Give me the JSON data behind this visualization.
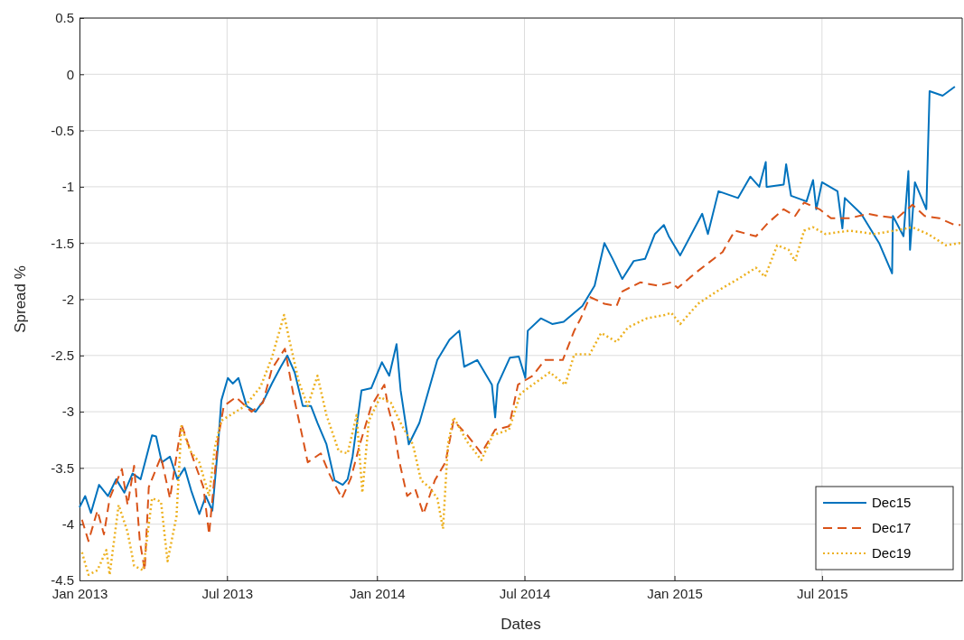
{
  "chart_data": {
    "type": "line",
    "xlabel": "Dates",
    "ylabel": "Spread %",
    "xlim": [
      "2013-01-01",
      "2015-12-20"
    ],
    "ylim": [
      -4.5,
      0.5
    ],
    "xticks": [
      {
        "value": "2013-01-01",
        "label": "Jan 2013"
      },
      {
        "value": "2013-07-01",
        "label": "Jul 2013"
      },
      {
        "value": "2014-01-01",
        "label": "Jan 2014"
      },
      {
        "value": "2014-07-01",
        "label": "Jul 2014"
      },
      {
        "value": "2015-01-01",
        "label": "Jan 2015"
      },
      {
        "value": "2015-07-01",
        "label": "Jul 2015"
      }
    ],
    "yticks": [
      -4.5,
      -4,
      -3.5,
      -3,
      -2.5,
      -2,
      -1.5,
      -1,
      -0.5,
      0,
      0.5
    ],
    "grid": true,
    "legend": "bottom right",
    "series": [
      {
        "name": "Dec15",
        "color": "#0072bd",
        "line_style": "solid",
        "x": [
          "2013-01-01",
          "2013-01-08",
          "2013-01-15",
          "2013-01-25",
          "2013-02-05",
          "2013-02-15",
          "2013-02-25",
          "2013-03-07",
          "2013-03-17",
          "2013-03-31",
          "2013-04-05",
          "2013-04-12",
          "2013-04-22",
          "2013-05-01",
          "2013-05-10",
          "2013-05-18",
          "2013-05-28",
          "2013-06-05",
          "2013-06-13",
          "2013-06-20",
          "2013-06-24",
          "2013-07-02",
          "2013-07-08",
          "2013-07-15",
          "2013-07-25",
          "2013-08-05",
          "2013-08-15",
          "2013-08-25",
          "2013-09-05",
          "2013-09-13",
          "2013-09-22",
          "2013-10-02",
          "2013-10-12",
          "2013-10-20",
          "2013-10-31",
          "2013-11-10",
          "2013-11-20",
          "2013-11-26",
          "2013-12-02",
          "2013-12-13",
          "2013-12-25",
          "2014-01-07",
          "2014-01-16",
          "2014-01-25",
          "2014-01-30",
          "2014-02-09",
          "2014-02-22",
          "2014-03-16",
          "2014-03-31",
          "2014-04-12",
          "2014-04-18",
          "2014-05-04",
          "2014-05-22",
          "2014-05-26",
          "2014-05-29",
          "2014-06-13",
          "2014-06-24",
          "2014-07-02",
          "2014-07-05",
          "2014-07-21",
          "2014-08-04",
          "2014-08-18",
          "2014-09-10",
          "2014-09-25",
          "2014-10-07",
          "2014-10-17",
          "2014-10-29",
          "2014-11-12",
          "2014-11-26",
          "2014-12-08",
          "2014-12-19",
          "2014-12-25",
          "2015-01-08",
          "2015-02-04",
          "2015-02-11",
          "2015-02-24",
          "2015-03-20",
          "2015-04-04",
          "2015-04-15",
          "2015-04-23",
          "2015-04-24",
          "2015-04-25",
          "2015-05-15",
          "2015-05-18",
          "2015-05-24",
          "2015-06-12",
          "2015-06-20",
          "2015-06-24",
          "2015-07-01",
          "2015-07-20",
          "2015-07-26",
          "2015-07-29",
          "2015-08-18",
          "2015-09-09",
          "2015-09-25",
          "2015-09-26",
          "2015-10-09",
          "2015-10-15",
          "2015-10-17",
          "2015-10-23",
          "2015-11-06",
          "2015-11-10",
          "2015-11-26",
          "2015-12-11"
        ],
        "values": [
          -3.85,
          -3.75,
          -3.9,
          -3.65,
          -3.75,
          -3.6,
          -3.72,
          -3.55,
          -3.6,
          -3.21,
          -3.22,
          -3.45,
          -3.4,
          -3.6,
          -3.5,
          -3.7,
          -3.91,
          -3.75,
          -3.88,
          -3.3,
          -2.9,
          -2.7,
          -2.75,
          -2.7,
          -2.95,
          -3.0,
          -2.9,
          -2.75,
          -2.6,
          -2.5,
          -2.65,
          -2.95,
          -2.95,
          -3.1,
          -3.29,
          -3.61,
          -3.65,
          -3.6,
          -3.4,
          -2.81,
          -2.79,
          -2.56,
          -2.68,
          -2.4,
          -2.81,
          -3.29,
          -3.1,
          -2.54,
          -2.36,
          -2.28,
          -2.6,
          -2.54,
          -2.76,
          -3.05,
          -2.76,
          -2.52,
          -2.51,
          -2.7,
          -2.28,
          -2.17,
          -2.22,
          -2.2,
          -2.06,
          -1.88,
          -1.5,
          -1.64,
          -1.82,
          -1.66,
          -1.64,
          -1.42,
          -1.34,
          -1.44,
          -1.61,
          -1.24,
          -1.42,
          -1.04,
          -1.1,
          -0.91,
          -1.0,
          -0.78,
          -1.0,
          -1.0,
          -0.98,
          -0.8,
          -1.08,
          -1.13,
          -0.94,
          -1.2,
          -0.96,
          -1.04,
          -1.37,
          -1.1,
          -1.24,
          -1.5,
          -1.77,
          -1.26,
          -1.44,
          -0.86,
          -1.56,
          -0.96,
          -1.2,
          -0.15,
          -0.19,
          -0.11
        ]
      },
      {
        "name": "Dec17",
        "color": "#d95319",
        "line_style": "dashed",
        "x": [
          "2013-01-04",
          "2013-01-12",
          "2013-01-23",
          "2013-01-31",
          "2013-02-07",
          "2013-02-22",
          "2013-03-01",
          "2013-03-09",
          "2013-03-16",
          "2013-03-22",
          "2013-03-27",
          "2013-04-11",
          "2013-04-22",
          "2013-05-06",
          "2013-05-22",
          "2013-06-02",
          "2013-06-09",
          "2013-06-20",
          "2013-06-27",
          "2013-07-12",
          "2013-07-31",
          "2013-08-14",
          "2013-08-25",
          "2013-09-10",
          "2013-09-21",
          "2013-10-02",
          "2013-10-08",
          "2013-10-24",
          "2013-11-04",
          "2013-11-19",
          "2013-11-30",
          "2013-12-11",
          "2013-12-25",
          "2014-01-10",
          "2014-01-15",
          "2014-01-22",
          "2014-01-28",
          "2014-02-07",
          "2014-02-17",
          "2014-02-27",
          "2014-03-13",
          "2014-03-26",
          "2014-04-05",
          "2014-04-22",
          "2014-05-09",
          "2014-05-26",
          "2014-06-12",
          "2014-06-23",
          "2014-07-11",
          "2014-07-26",
          "2014-08-17",
          "2014-08-31",
          "2014-09-08",
          "2014-09-19",
          "2014-10-07",
          "2014-10-22",
          "2014-10-29",
          "2014-11-20",
          "2014-12-12",
          "2014-12-28",
          "2015-01-05",
          "2015-01-26",
          "2015-03-01",
          "2015-03-16",
          "2015-04-11",
          "2015-04-26",
          "2015-05-15",
          "2015-05-29",
          "2015-06-09",
          "2015-06-28",
          "2015-07-12",
          "2015-08-04",
          "2015-08-26",
          "2015-09-09",
          "2015-10-01",
          "2015-10-20",
          "2015-11-04",
          "2015-11-22",
          "2015-12-11",
          "2015-12-18"
        ],
        "values": [
          -3.96,
          -4.15,
          -3.88,
          -4.09,
          -3.77,
          -3.51,
          -3.83,
          -3.48,
          -4.15,
          -4.41,
          -3.67,
          -3.4,
          -3.77,
          -3.11,
          -3.45,
          -3.67,
          -4.09,
          -3.24,
          -2.95,
          -2.87,
          -3.0,
          -2.92,
          -2.62,
          -2.44,
          -2.87,
          -3.24,
          -3.45,
          -3.37,
          -3.56,
          -3.77,
          -3.59,
          -3.29,
          -2.95,
          -2.76,
          -2.97,
          -3.16,
          -3.43,
          -3.75,
          -3.69,
          -3.91,
          -3.61,
          -3.45,
          -3.08,
          -3.21,
          -3.37,
          -3.16,
          -3.13,
          -2.76,
          -2.68,
          -2.54,
          -2.54,
          -2.28,
          -2.17,
          -1.98,
          -2.04,
          -2.06,
          -1.93,
          -1.85,
          -1.88,
          -1.85,
          -1.9,
          -1.77,
          -1.58,
          -1.39,
          -1.44,
          -1.32,
          -1.2,
          -1.26,
          -1.14,
          -1.2,
          -1.28,
          -1.28,
          -1.24,
          -1.26,
          -1.28,
          -1.16,
          -1.26,
          -1.28,
          -1.34,
          -1.34
        ]
      },
      {
        "name": "Dec19",
        "color": "#edb120",
        "line_style": "dotted",
        "x": [
          "2013-01-04",
          "2013-01-12",
          "2013-01-23",
          "2013-02-03",
          "2013-02-07",
          "2013-02-18",
          "2013-03-01",
          "2013-03-09",
          "2013-03-20",
          "2013-03-31",
          "2013-04-11",
          "2013-04-19",
          "2013-04-30",
          "2013-05-06",
          "2013-05-17",
          "2013-05-28",
          "2013-06-09",
          "2013-06-16",
          "2013-06-24",
          "2013-07-05",
          "2013-07-23",
          "2013-08-11",
          "2013-08-25",
          "2013-09-09",
          "2013-09-16",
          "2013-09-27",
          "2013-10-08",
          "2013-10-20",
          "2013-10-31",
          "2013-11-15",
          "2013-11-26",
          "2013-12-07",
          "2013-12-14",
          "2013-12-22",
          "2014-01-05",
          "2014-01-18",
          "2014-02-01",
          "2014-02-14",
          "2014-02-24",
          "2014-03-06",
          "2014-03-16",
          "2014-03-23",
          "2014-03-29",
          "2014-04-05",
          "2014-04-22",
          "2014-05-09",
          "2014-05-23",
          "2014-06-12",
          "2014-06-26",
          "2014-07-11",
          "2014-08-01",
          "2014-08-20",
          "2014-08-31",
          "2014-09-19",
          "2014-10-03",
          "2014-10-22",
          "2014-11-05",
          "2014-11-28",
          "2014-12-20",
          "2014-12-28",
          "2015-01-08",
          "2015-01-30",
          "2015-02-22",
          "2015-03-20",
          "2015-04-11",
          "2015-04-22",
          "2015-05-07",
          "2015-05-21",
          "2015-05-29",
          "2015-06-09",
          "2015-06-20",
          "2015-07-05",
          "2015-08-04",
          "2015-09-03",
          "2015-09-28",
          "2015-10-20",
          "2015-11-08",
          "2015-11-30",
          "2015-12-18"
        ],
        "values": [
          -4.25,
          -4.45,
          -4.41,
          -4.23,
          -4.45,
          -3.83,
          -4.07,
          -4.37,
          -4.41,
          -3.77,
          -3.8,
          -4.33,
          -3.93,
          -3.13,
          -3.35,
          -3.45,
          -3.75,
          -3.32,
          -3.08,
          -3.03,
          -2.95,
          -2.78,
          -2.52,
          -2.14,
          -2.38,
          -2.73,
          -2.95,
          -2.68,
          -3.03,
          -3.35,
          -3.37,
          -3.03,
          -3.72,
          -3.08,
          -2.87,
          -2.92,
          -3.13,
          -3.29,
          -3.61,
          -3.67,
          -3.77,
          -4.04,
          -3.29,
          -3.05,
          -3.27,
          -3.43,
          -3.21,
          -3.16,
          -2.84,
          -2.76,
          -2.65,
          -2.76,
          -2.49,
          -2.49,
          -2.3,
          -2.38,
          -2.25,
          -2.17,
          -2.14,
          -2.12,
          -2.22,
          -2.04,
          -1.93,
          -1.82,
          -1.72,
          -1.8,
          -1.52,
          -1.56,
          -1.66,
          -1.39,
          -1.36,
          -1.42,
          -1.39,
          -1.42,
          -1.39,
          -1.36,
          -1.42,
          -1.52,
          -1.5
        ]
      }
    ]
  }
}
